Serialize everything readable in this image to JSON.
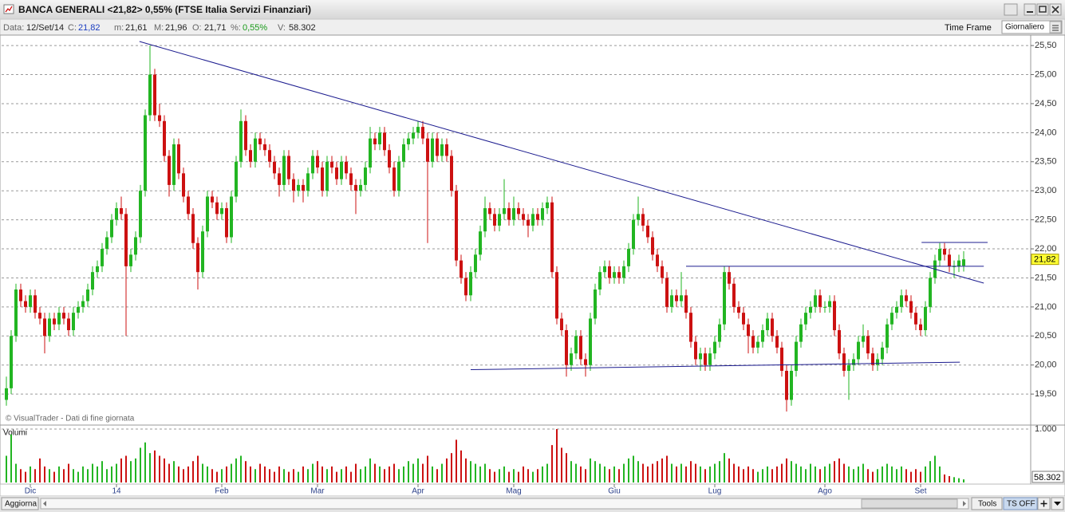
{
  "window": {
    "title": "BANCA GENERALI <21,82> 0,55%  (FTSE Italia Servizi Finanziari)"
  },
  "toolbar": {
    "date_label": "Data:",
    "date": "12/Set/14",
    "c_label": "C:",
    "close": "21,82",
    "m_label": "m:",
    "low": "21,61",
    "M_label": "M:",
    "high": "21,96",
    "o_label": "O:",
    "open": "21,71",
    "pct_label": "%:",
    "pct": "0,55%",
    "v_label": "V:",
    "volume": "58.302",
    "time_frame": "Time Frame",
    "interval": "Giornaliero"
  },
  "footer": {
    "refresh": "Aggiorna",
    "tools": "Tools",
    "ts": "TS OFF"
  },
  "chart_data": {
    "type": "candlestick",
    "credit": "© VisualTrader - Dati di fine giornata",
    "volume_title": "Volumi",
    "up_color": "#22b522",
    "down_color": "#cc1111",
    "trend_color": "#1c1c8f",
    "grid": true,
    "categories": [
      null,
      null,
      null,
      null,
      null,
      "Dic",
      null,
      null,
      null,
      null,
      null,
      null,
      null,
      null,
      null,
      null,
      null,
      null,
      null,
      null,
      null,
      null,
      null,
      "14",
      null,
      null,
      null,
      null,
      null,
      null,
      null,
      null,
      null,
      null,
      null,
      null,
      null,
      null,
      null,
      null,
      null,
      null,
      null,
      null,
      null,
      "Feb",
      null,
      null,
      null,
      null,
      null,
      null,
      null,
      null,
      null,
      null,
      null,
      null,
      null,
      null,
      null,
      null,
      null,
      null,
      null,
      "Mar",
      null,
      null,
      null,
      null,
      null,
      null,
      null,
      null,
      null,
      null,
      null,
      null,
      null,
      null,
      null,
      null,
      null,
      null,
      null,
      null,
      "Apr",
      null,
      null,
      null,
      null,
      null,
      null,
      null,
      null,
      null,
      null,
      null,
      null,
      null,
      null,
      null,
      null,
      null,
      null,
      null,
      "Mag",
      null,
      null,
      null,
      null,
      null,
      null,
      null,
      null,
      null,
      null,
      null,
      null,
      null,
      null,
      null,
      null,
      null,
      null,
      null,
      null,
      "Giu",
      null,
      null,
      null,
      null,
      null,
      null,
      null,
      null,
      null,
      null,
      null,
      null,
      null,
      null,
      null,
      null,
      null,
      null,
      null,
      null,
      "Lug",
      null,
      null,
      null,
      null,
      null,
      null,
      null,
      null,
      null,
      null,
      null,
      null,
      null,
      null,
      null,
      null,
      null,
      null,
      null,
      null,
      null,
      null,
      "Ago",
      null,
      null,
      null,
      null,
      null,
      null,
      null,
      null,
      null,
      null,
      null,
      null,
      null,
      null,
      null,
      null,
      null,
      null,
      null,
      "Set",
      null,
      null,
      null,
      null,
      null,
      null,
      null,
      null,
      null
    ],
    "open": [
      19.4,
      19.6,
      20.5,
      21.3,
      21.1,
      21.0,
      21.2,
      20.9,
      20.8,
      20.5,
      20.8,
      20.7,
      20.9,
      20.8,
      20.6,
      20.9,
      21.0,
      21.1,
      21.3,
      21.6,
      21.7,
      22.0,
      22.2,
      22.5,
      22.7,
      22.6,
      21.7,
      21.9,
      22.2,
      23.0,
      24.3,
      25.0,
      24.3,
      24.2,
      23.6,
      23.1,
      23.8,
      23.3,
      22.9,
      22.6,
      22.1,
      21.6,
      22.3,
      22.9,
      22.8,
      22.6,
      22.7,
      22.2,
      22.9,
      23.5,
      24.2,
      23.7,
      23.5,
      23.9,
      23.8,
      23.7,
      23.5,
      23.3,
      23.1,
      23.6,
      23.2,
      23.0,
      23.1,
      23.0,
      23.3,
      23.6,
      23.4,
      23.0,
      23.5,
      23.4,
      23.2,
      23.5,
      23.3,
      23.1,
      23.0,
      23.1,
      23.4,
      23.9,
      23.8,
      24.0,
      23.7,
      23.4,
      23.0,
      23.5,
      23.8,
      23.9,
      24.0,
      24.1,
      23.9,
      23.5,
      23.9,
      23.6,
      23.8,
      23.6,
      23.0,
      21.8,
      21.5,
      21.2,
      21.6,
      21.9,
      22.3,
      22.7,
      22.6,
      22.4,
      22.6,
      22.7,
      22.5,
      22.7,
      22.6,
      22.5,
      22.4,
      22.6,
      22.5,
      22.7,
      22.8,
      21.6,
      20.8,
      20.6,
      20.0,
      20.2,
      20.5,
      20.1,
      20.0,
      20.8,
      21.3,
      21.6,
      21.7,
      21.5,
      21.6,
      21.5,
      21.7,
      22.0,
      22.5,
      22.6,
      22.4,
      22.2,
      21.9,
      21.7,
      21.5,
      21.0,
      21.2,
      21.1,
      21.2,
      20.9,
      20.4,
      20.1,
      20.2,
      20.0,
      20.2,
      20.4,
      20.7,
      21.6,
      21.4,
      21.0,
      20.9,
      20.7,
      20.5,
      20.3,
      20.4,
      20.6,
      20.8,
      20.5,
      20.3,
      19.9,
      19.4,
      19.9,
      20.4,
      20.7,
      20.9,
      21.0,
      21.2,
      21.0,
      21.0,
      21.1,
      20.6,
      20.2,
      19.9,
      20.0,
      20.1,
      20.4,
      20.5,
      20.2,
      20.0,
      20.1,
      20.3,
      20.7,
      20.9,
      21.0,
      21.2,
      21.1,
      20.9,
      20.7,
      20.6,
      21.0,
      21.5,
      21.8,
      22.0,
      21.9,
      21.7,
      21.7,
      21.71
    ],
    "high": [
      19.8,
      20.6,
      21.4,
      21.4,
      21.2,
      21.3,
      21.3,
      21.0,
      20.9,
      20.9,
      20.9,
      21.0,
      21.0,
      20.9,
      21.0,
      21.1,
      21.2,
      21.4,
      21.7,
      21.8,
      22.1,
      22.3,
      22.6,
      22.8,
      22.9,
      22.7,
      22.0,
      22.3,
      23.1,
      24.4,
      25.5,
      25.1,
      24.5,
      24.3,
      23.7,
      23.9,
      23.9,
      23.4,
      23.0,
      22.7,
      22.2,
      22.4,
      23.0,
      23.0,
      22.9,
      22.8,
      22.8,
      23.0,
      23.6,
      24.4,
      24.3,
      23.8,
      24.0,
      24.0,
      23.9,
      23.8,
      23.6,
      23.4,
      23.7,
      23.7,
      23.3,
      23.2,
      23.2,
      23.4,
      23.7,
      23.7,
      23.5,
      23.6,
      23.6,
      23.5,
      23.6,
      23.6,
      23.4,
      23.2,
      23.2,
      23.5,
      24.1,
      24.0,
      24.1,
      24.1,
      23.8,
      23.5,
      23.6,
      23.9,
      24.0,
      24.1,
      24.2,
      24.2,
      24.0,
      24.0,
      24.0,
      23.9,
      23.9,
      23.7,
      23.1,
      21.9,
      21.6,
      21.7,
      22.0,
      22.4,
      22.9,
      22.8,
      22.7,
      22.7,
      23.2,
      22.8,
      22.9,
      22.8,
      22.7,
      22.6,
      22.7,
      22.7,
      22.8,
      22.9,
      22.9,
      21.7,
      20.9,
      20.7,
      20.3,
      20.6,
      20.6,
      20.2,
      20.9,
      21.4,
      21.7,
      21.8,
      21.8,
      21.7,
      21.7,
      21.8,
      22.1,
      22.6,
      22.9,
      22.7,
      22.5,
      22.3,
      22.0,
      21.8,
      21.6,
      21.3,
      21.3,
      21.6,
      21.3,
      21.0,
      20.5,
      20.3,
      20.3,
      20.3,
      20.5,
      20.8,
      21.7,
      21.7,
      21.5,
      21.1,
      21.0,
      20.8,
      20.6,
      20.5,
      20.7,
      20.9,
      20.9,
      20.6,
      20.4,
      20.0,
      20.0,
      20.5,
      20.8,
      21.0,
      21.1,
      21.3,
      21.3,
      21.1,
      21.2,
      21.2,
      20.7,
      20.3,
      20.1,
      20.2,
      20.5,
      20.7,
      20.6,
      20.3,
      20.2,
      20.4,
      20.8,
      21.0,
      21.1,
      21.3,
      21.3,
      21.2,
      21.0,
      20.8,
      21.1,
      21.6,
      21.9,
      22.1,
      22.1,
      22.0,
      21.8,
      21.9,
      21.96
    ],
    "low": [
      19.3,
      19.5,
      20.4,
      21.0,
      20.9,
      20.9,
      20.8,
      20.7,
      20.2,
      20.4,
      20.6,
      20.6,
      20.7,
      20.5,
      20.5,
      20.8,
      20.9,
      21.0,
      21.2,
      21.5,
      21.6,
      21.9,
      22.1,
      22.4,
      22.5,
      20.5,
      21.6,
      21.8,
      22.1,
      22.9,
      24.2,
      24.2,
      24.1,
      23.5,
      22.9,
      23.0,
      23.2,
      22.8,
      22.5,
      22.0,
      21.3,
      21.5,
      22.2,
      22.7,
      22.5,
      22.5,
      22.1,
      22.1,
      22.8,
      23.4,
      23.6,
      23.4,
      23.4,
      23.7,
      23.6,
      23.4,
      23.2,
      22.9,
      23.0,
      23.1,
      22.8,
      22.9,
      22.8,
      22.9,
      23.2,
      23.3,
      22.9,
      22.9,
      23.3,
      23.1,
      23.1,
      23.2,
      23.0,
      22.6,
      22.9,
      23.0,
      23.3,
      23.7,
      23.7,
      23.6,
      23.3,
      22.9,
      22.9,
      23.4,
      23.7,
      23.8,
      23.9,
      23.8,
      22.1,
      23.4,
      23.5,
      23.5,
      23.5,
      22.9,
      21.7,
      21.4,
      21.1,
      21.1,
      21.5,
      21.8,
      22.2,
      22.5,
      22.3,
      22.3,
      22.5,
      22.4,
      22.4,
      22.5,
      22.4,
      22.2,
      22.3,
      22.4,
      22.4,
      22.6,
      21.5,
      20.7,
      20.5,
      19.8,
      19.9,
      20.1,
      20.0,
      19.8,
      19.9,
      20.7,
      21.2,
      21.5,
      21.4,
      21.4,
      21.4,
      21.4,
      21.6,
      21.9,
      22.4,
      22.3,
      22.1,
      21.8,
      21.6,
      21.4,
      20.9,
      20.9,
      21.0,
      21.0,
      20.8,
      20.3,
      20.0,
      19.9,
      19.9,
      19.9,
      20.1,
      20.3,
      20.6,
      21.3,
      20.9,
      20.8,
      20.6,
      20.2,
      20.2,
      20.2,
      20.3,
      20.5,
      20.4,
      20.2,
      19.8,
      19.2,
      19.3,
      19.8,
      20.3,
      20.6,
      20.8,
      20.9,
      20.9,
      20.9,
      20.9,
      20.5,
      20.1,
      19.8,
      19.4,
      19.9,
      20.0,
      20.3,
      20.1,
      19.9,
      19.9,
      20.0,
      20.2,
      20.6,
      20.8,
      20.9,
      21.0,
      20.8,
      20.6,
      20.5,
      20.5,
      20.9,
      21.4,
      21.7,
      21.8,
      21.6,
      21.5,
      21.6,
      21.61
    ],
    "close": [
      19.6,
      20.5,
      21.3,
      21.1,
      21.0,
      21.2,
      20.9,
      20.8,
      20.5,
      20.8,
      20.7,
      20.9,
      20.8,
      20.6,
      20.9,
      21.0,
      21.1,
      21.3,
      21.6,
      21.7,
      22.0,
      22.2,
      22.5,
      22.7,
      22.6,
      21.7,
      21.9,
      22.2,
      23.0,
      24.3,
      25.0,
      24.3,
      24.2,
      23.6,
      23.1,
      23.8,
      23.3,
      22.9,
      22.6,
      22.1,
      21.6,
      22.3,
      22.9,
      22.8,
      22.6,
      22.7,
      22.2,
      22.9,
      23.5,
      24.2,
      23.7,
      23.5,
      23.9,
      23.8,
      23.7,
      23.5,
      23.3,
      23.1,
      23.6,
      23.2,
      23.0,
      23.1,
      23.0,
      23.3,
      23.6,
      23.4,
      23.0,
      23.5,
      23.4,
      23.2,
      23.5,
      23.3,
      23.1,
      23.0,
      23.1,
      23.4,
      23.9,
      23.8,
      24.0,
      23.7,
      23.4,
      23.0,
      23.5,
      23.8,
      23.9,
      24.0,
      24.1,
      23.9,
      23.5,
      23.9,
      23.6,
      23.8,
      23.6,
      23.0,
      21.8,
      21.5,
      21.2,
      21.6,
      21.9,
      22.3,
      22.7,
      22.6,
      22.4,
      22.6,
      22.7,
      22.5,
      22.7,
      22.6,
      22.5,
      22.4,
      22.6,
      22.5,
      22.7,
      22.8,
      21.6,
      20.8,
      20.6,
      20.0,
      20.2,
      20.5,
      20.1,
      20.0,
      20.8,
      21.3,
      21.6,
      21.7,
      21.5,
      21.6,
      21.5,
      21.7,
      22.0,
      22.5,
      22.6,
      22.4,
      22.2,
      21.9,
      21.7,
      21.5,
      21.0,
      21.2,
      21.1,
      21.2,
      20.9,
      20.4,
      20.1,
      20.2,
      20.0,
      20.2,
      20.4,
      20.7,
      21.6,
      21.4,
      21.0,
      20.9,
      20.7,
      20.5,
      20.3,
      20.4,
      20.6,
      20.8,
      20.5,
      20.3,
      19.9,
      19.4,
      19.9,
      20.4,
      20.7,
      20.9,
      21.0,
      21.2,
      21.0,
      21.0,
      21.1,
      20.6,
      20.2,
      19.9,
      20.0,
      20.1,
      20.4,
      20.5,
      20.2,
      20.0,
      20.1,
      20.3,
      20.7,
      20.9,
      21.0,
      21.2,
      21.1,
      20.9,
      20.7,
      20.6,
      21.0,
      21.5,
      21.8,
      22.0,
      21.9,
      21.7,
      21.7,
      21.8,
      21.82
    ],
    "volumes": [
      500,
      900,
      350,
      250,
      200,
      300,
      250,
      450,
      300,
      250,
      200,
      300,
      250,
      350,
      250,
      200,
      300,
      250,
      350,
      300,
      400,
      250,
      300,
      350,
      450,
      500,
      400,
      450,
      650,
      750,
      550,
      600,
      500,
      450,
      350,
      400,
      300,
      250,
      300,
      400,
      500,
      350,
      300,
      250,
      200,
      250,
      300,
      350,
      450,
      500,
      400,
      300,
      250,
      350,
      300,
      250,
      200,
      300,
      250,
      200,
      250,
      200,
      300,
      250,
      350,
      400,
      300,
      250,
      300,
      200,
      250,
      300,
      200,
      350,
      250,
      300,
      450,
      350,
      300,
      250,
      300,
      350,
      250,
      300,
      400,
      350,
      450,
      350,
      500,
      300,
      250,
      350,
      450,
      550,
      800,
      600,
      450,
      400,
      350,
      300,
      350,
      250,
      200,
      250,
      300,
      200,
      250,
      200,
      300,
      250,
      200,
      250,
      300,
      350,
      700,
      1000,
      650,
      550,
      400,
      350,
      300,
      250,
      450,
      400,
      350,
      300,
      250,
      300,
      250,
      350,
      450,
      500,
      400,
      350,
      300,
      350,
      400,
      450,
      500,
      350,
      300,
      350,
      300,
      400,
      350,
      300,
      250,
      300,
      350,
      400,
      550,
      450,
      350,
      300,
      250,
      300,
      250,
      200,
      250,
      300,
      250,
      300,
      350,
      450,
      400,
      350,
      300,
      250,
      350,
      300,
      250,
      300,
      350,
      400,
      450,
      350,
      300,
      250,
      300,
      350,
      250,
      200,
      250,
      300,
      350,
      300,
      250,
      300,
      250,
      200,
      250,
      200,
      300,
      400,
      500,
      300,
      150,
      120,
      100,
      80,
      58.302
    ],
    "ylim": [
      18.98,
      25.68
    ],
    "yticks": [
      {
        "value": 19.5,
        "label": "19,50"
      },
      {
        "value": 20,
        "label": "20,00"
      },
      {
        "value": 20.5,
        "label": "20,50"
      },
      {
        "value": 21,
        "label": "21,00"
      },
      {
        "value": 21.5,
        "label": "21,50"
      },
      {
        "value": 22,
        "label": "22,00"
      },
      {
        "value": 22.5,
        "label": "22,50"
      },
      {
        "value": 23,
        "label": "23,00"
      },
      {
        "value": 23.5,
        "label": "23,50"
      },
      {
        "value": 24,
        "label": "24,00"
      },
      {
        "value": 24.5,
        "label": "24,50"
      },
      {
        "value": 25,
        "label": "25,00"
      },
      {
        "value": 25.5,
        "label": "25,50"
      }
    ],
    "vlim": [
      0,
      1060
    ],
    "vticks": [
      {
        "value": 1000,
        "label": "1.000"
      }
    ],
    "trendlines": [
      {
        "from": [
          27.8,
          25.57
        ],
        "to": [
          204.2,
          21.41
        ]
      },
      {
        "from": [
          97,
          19.92
        ],
        "to": [
          199.2,
          20.05
        ]
      },
      {
        "from": [
          142,
          21.7
        ],
        "to": [
          204.2,
          21.7
        ]
      },
      {
        "from": [
          191.2,
          22.11
        ],
        "to": [
          205,
          22.11
        ]
      }
    ]
  }
}
